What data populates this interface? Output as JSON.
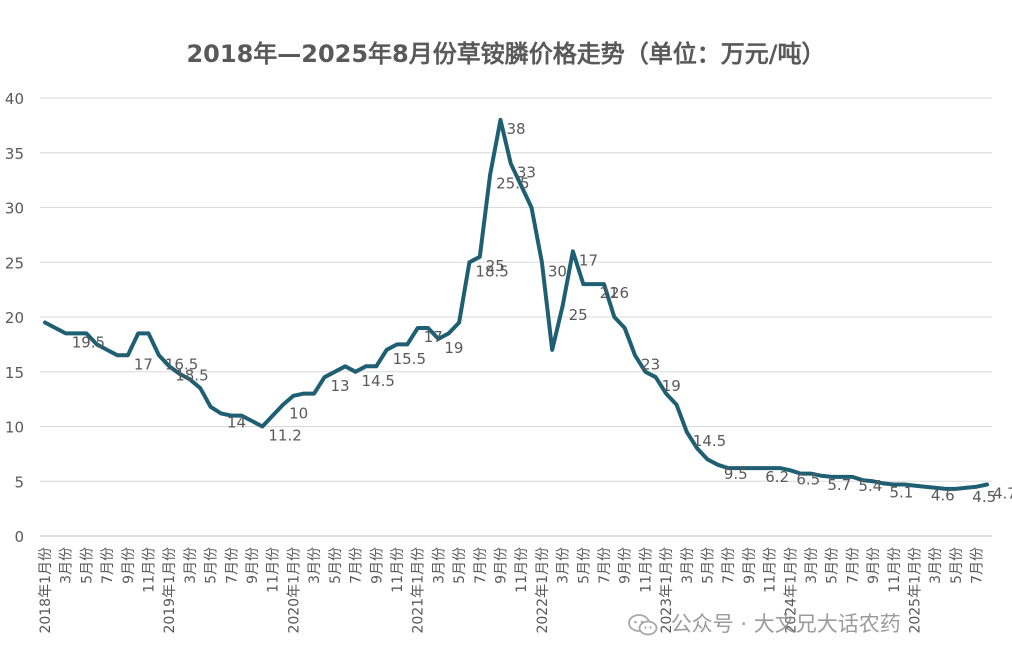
{
  "chart_data": {
    "type": "line",
    "title": "2018年—2025年8月份草铵膦价格走势（单位：万元/吨）",
    "xlabel": "",
    "ylabel": "",
    "ylim": [
      0,
      40
    ],
    "yticks": [
      "0",
      "5",
      "10",
      "15",
      "20",
      "25",
      "30",
      "35",
      "40"
    ],
    "grid": true,
    "legend": "none",
    "line_color": "#1f5f73",
    "x_tick_labels": [
      "2018年1月份",
      "3月份",
      "5月份",
      "7月份",
      "9月份",
      "11月份",
      "2019年1月份",
      "3月份",
      "5月份",
      "7月份",
      "9月份",
      "11月份",
      "2020年1月份",
      "3月份",
      "5月份",
      "7月份",
      "9月份",
      "11月份",
      "2021年1月份",
      "3月份",
      "5月份",
      "7月份",
      "9月份",
      "11月份",
      "2022年1月份",
      "3月份",
      "5月份",
      "7月份",
      "9月份",
      "11月份",
      "2023年1月份",
      "3月份",
      "5月份",
      "7月份",
      "9月份",
      "11月份",
      "2024年1月份",
      "3月份",
      "5月份",
      "7月份",
      "9月份",
      "11月份",
      "2025年1月份",
      "3月份",
      "5月份",
      "7月份"
    ],
    "series": [
      {
        "values": [
          19.5,
          19,
          18.5,
          18.5,
          18.5,
          17.5,
          17,
          16.5,
          16.5,
          18.5,
          18.5,
          16.5,
          15.5,
          14.8,
          14.3,
          13.5,
          11.8,
          11.2,
          11,
          11,
          10.5,
          10,
          11,
          12,
          12.8,
          13,
          13,
          14.5,
          15,
          15.5,
          15,
          15.5,
          15.5,
          17,
          17.5,
          17.5,
          19,
          19,
          18,
          18.5,
          19.5,
          25,
          25.5,
          33,
          38,
          34,
          32,
          30,
          25,
          17,
          21,
          26,
          23,
          23,
          23,
          20,
          19,
          16.5,
          15,
          14.5,
          13,
          12,
          9.5,
          8,
          7,
          6.5,
          6.2,
          6.2,
          6.2,
          6.2,
          6.2,
          6.2,
          6,
          5.7,
          5.7,
          5.5,
          5.4,
          5.4,
          5.4,
          5.1,
          5,
          4.8,
          4.7,
          4.7,
          4.6,
          4.5,
          4.4,
          4.3,
          4.3,
          4.4,
          4.5,
          4.7
        ],
        "data_labels": [
          {
            "index": 2,
            "text": "19.5"
          },
          {
            "index": 8,
            "text": "17"
          },
          {
            "index": 11,
            "text": "16.5"
          },
          {
            "index": 12,
            "text": "18.5"
          },
          {
            "index": 17,
            "text": "14"
          },
          {
            "index": 21,
            "text": "11.2"
          },
          {
            "index": 23,
            "text": "10"
          },
          {
            "index": 27,
            "text": "13"
          },
          {
            "index": 30,
            "text": "14.5"
          },
          {
            "index": 33,
            "text": "15.5"
          },
          {
            "index": 36,
            "text": "17"
          },
          {
            "index": 38,
            "text": "19"
          },
          {
            "index": 41,
            "text": "18.5"
          },
          {
            "index": 42,
            "text": "25"
          },
          {
            "index": 43,
            "text": "25.5"
          },
          {
            "index": 44,
            "text": "38"
          },
          {
            "index": 45,
            "text": "33"
          },
          {
            "index": 48,
            "text": "30"
          },
          {
            "index": 50,
            "text": "25"
          },
          {
            "index": 51,
            "text": "17"
          },
          {
            "index": 53,
            "text": "21"
          },
          {
            "index": 54,
            "text": "26"
          },
          {
            "index": 57,
            "text": "23"
          },
          {
            "index": 59,
            "text": "19"
          },
          {
            "index": 62,
            "text": "14.5"
          },
          {
            "index": 65,
            "text": "9.5"
          },
          {
            "index": 69,
            "text": "6.2"
          },
          {
            "index": 72,
            "text": "6.5"
          },
          {
            "index": 75,
            "text": "5.7"
          },
          {
            "index": 78,
            "text": "5.4"
          },
          {
            "index": 81,
            "text": "5.1"
          },
          {
            "index": 85,
            "text": "4.6"
          },
          {
            "index": 89,
            "text": "4.5"
          },
          {
            "index": 91,
            "text": "4.7"
          }
        ]
      }
    ]
  },
  "watermark": {
    "icon": "wechat-logo-icon",
    "text": "公众号 · 大文兄大话农药"
  }
}
